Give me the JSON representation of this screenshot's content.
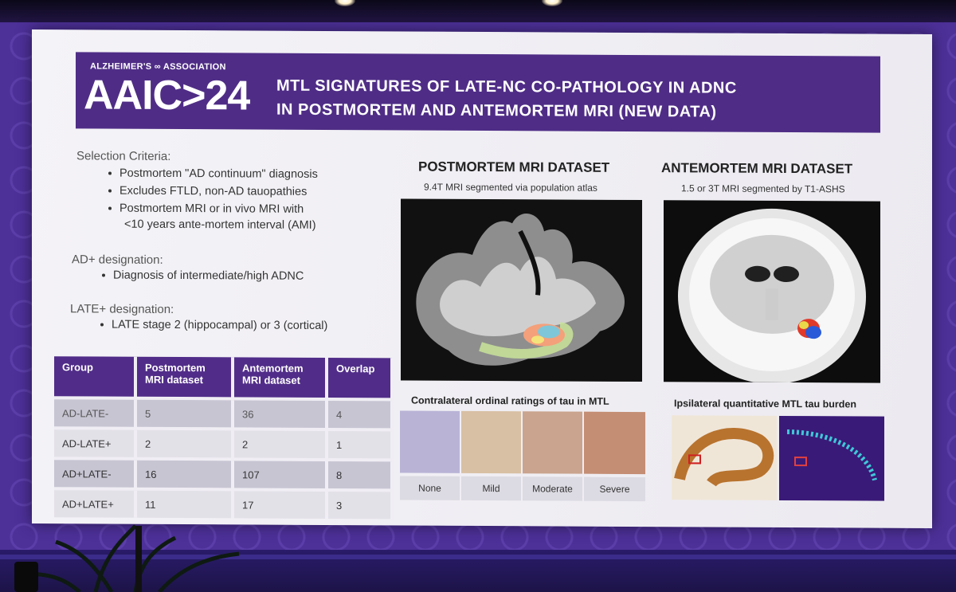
{
  "slide": {
    "brand_small": "ALZHEIMER'S ∞ ASSOCIATION",
    "brand_logo": "AAIC>24",
    "title_line1": "MTL SIGNATURES OF LATE-NC CO-PATHOLOGY IN ADNC",
    "title_line2": "IN POSTMORTEM AND ANTEMORTEM MRI (NEW DATA)"
  },
  "criteria": {
    "heading": "Selection Criteria:",
    "items": [
      "Postmortem \"AD continuum\" diagnosis",
      "Excludes FTLD, non-AD tauopathies",
      "Postmortem MRI or in vivo MRI with",
      "<10 years ante-mortem interval (AMI)"
    ],
    "ad_heading": "AD+ designation:",
    "ad_item": "Diagnosis of intermediate/high ADNC",
    "late_heading": "LATE+ designation:",
    "late_item": "LATE stage 2 (hippocampal) or 3 (cortical)"
  },
  "table": {
    "headers": [
      "Group",
      "Postmortem MRI dataset",
      "Antemortem MRI dataset",
      "Overlap"
    ],
    "header_lines": [
      [
        "Group",
        ""
      ],
      [
        "Postmortem",
        "MRI dataset"
      ],
      [
        "Antemortem",
        "MRI dataset"
      ],
      [
        "Overlap",
        ""
      ]
    ],
    "rows": [
      [
        "AD-LATE-",
        "5",
        "36",
        "4"
      ],
      [
        "AD-LATE+",
        "2",
        "2",
        "1"
      ],
      [
        "AD+LATE-",
        "16",
        "107",
        "8"
      ],
      [
        "AD+LATE+",
        "11",
        "17",
        "3"
      ]
    ]
  },
  "postmortem": {
    "title": "POSTMORTEM MRI DATASET",
    "subtitle": "9.4T MRI segmented via population atlas",
    "caption": "Contralateral ordinal ratings of tau in MTL",
    "ratings": [
      "None",
      "Mild",
      "Moderate",
      "Severe"
    ]
  },
  "antemortem": {
    "title": "ANTEMORTEM MRI DATASET",
    "subtitle": "1.5 or 3T MRI segmented by T1-ASHS",
    "caption": "Ipsilateral quantitative MTL tau burden"
  },
  "colors": {
    "header_purple": "#4f2d86",
    "table_header": "#512d89",
    "wall_purple": "#4d3098"
  }
}
